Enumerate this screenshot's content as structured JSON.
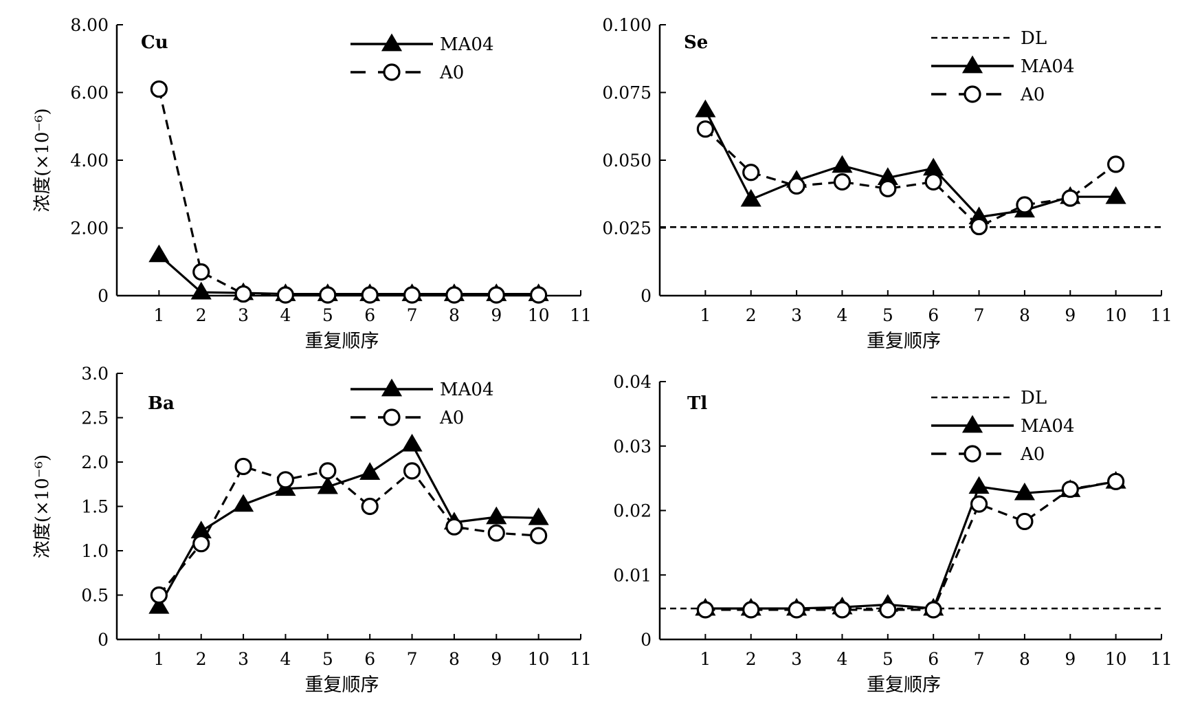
{
  "figure": {
    "background": "#ffffff",
    "line_color": "#000000"
  },
  "chart_data": [
    {
      "type": "line",
      "title": "Cu",
      "xlabel": "重复顺序",
      "ylabel": "浓度(×10⁻⁶)",
      "xlim": [
        0,
        11
      ],
      "ylim": [
        0,
        8
      ],
      "xticks": [
        "1",
        "2",
        "3",
        "4",
        "5",
        "6",
        "7",
        "8",
        "9",
        "10",
        "11"
      ],
      "yticks": [
        "0",
        "2.00",
        "4.00",
        "6.00",
        "8.00"
      ],
      "ytick_values": [
        0,
        2,
        4,
        6,
        8
      ],
      "x": [
        1,
        2,
        3,
        4,
        5,
        6,
        7,
        8,
        9,
        10
      ],
      "legend_position": "top-right",
      "series": [
        {
          "name": "MA04",
          "style": "solid",
          "marker": "triangle",
          "values": [
            1.2,
            0.1,
            0.08,
            0.05,
            0.05,
            0.05,
            0.05,
            0.05,
            0.05,
            0.05
          ]
        },
        {
          "name": "A0",
          "style": "dashed",
          "marker": "circle",
          "values": [
            6.1,
            0.7,
            0.05,
            0.02,
            0.02,
            0.02,
            0.02,
            0.02,
            0.02,
            0.02
          ]
        }
      ]
    },
    {
      "type": "line",
      "title": "Se",
      "xlabel": "重复顺序",
      "ylabel": "",
      "xlim": [
        0,
        11
      ],
      "ylim": [
        0,
        0.1
      ],
      "xticks": [
        "1",
        "2",
        "3",
        "4",
        "5",
        "6",
        "7",
        "8",
        "9",
        "10",
        "11"
      ],
      "yticks": [
        "0",
        "0.025",
        "0.050",
        "0.075",
        "0.100"
      ],
      "ytick_values": [
        0,
        0.025,
        0.05,
        0.075,
        0.1
      ],
      "x": [
        1,
        2,
        3,
        4,
        5,
        6,
        7,
        8,
        9,
        10
      ],
      "legend_position": "top-right",
      "reference_line": {
        "name": "DL",
        "value": 0.0253
      },
      "series": [
        {
          "name": "MA04",
          "style": "solid",
          "marker": "triangle",
          "values": [
            0.0685,
            0.0355,
            0.0425,
            0.048,
            0.0435,
            0.047,
            0.029,
            0.0315,
            0.0365,
            0.0365
          ]
        },
        {
          "name": "A0",
          "style": "dashed",
          "marker": "circle",
          "values": [
            0.0615,
            0.0455,
            0.0405,
            0.042,
            0.0395,
            0.042,
            0.0255,
            0.0335,
            0.036,
            0.0485
          ]
        }
      ]
    },
    {
      "type": "line",
      "title": "Ba",
      "xlabel": "重复顺序",
      "ylabel": "浓度(×10⁻⁶)",
      "xlim": [
        0,
        11
      ],
      "ylim": [
        0,
        3
      ],
      "xticks": [
        "1",
        "2",
        "3",
        "4",
        "5",
        "6",
        "7",
        "8",
        "9",
        "10",
        "11"
      ],
      "yticks": [
        "0",
        "0.5",
        "1.0",
        "1.5",
        "2.0",
        "2.5",
        "3.0"
      ],
      "ytick_values": [
        0,
        0.5,
        1,
        1.5,
        2,
        2.5,
        3
      ],
      "x": [
        1,
        2,
        3,
        4,
        5,
        6,
        7,
        8,
        9,
        10
      ],
      "legend_position": "top-right",
      "series": [
        {
          "name": "MA04",
          "style": "solid",
          "marker": "triangle",
          "values": [
            0.37,
            1.22,
            1.52,
            1.7,
            1.72,
            1.88,
            2.2,
            1.32,
            1.38,
            1.37
          ]
        },
        {
          "name": "A0",
          "style": "dashed",
          "marker": "circle",
          "values": [
            0.5,
            1.08,
            1.95,
            1.8,
            1.9,
            1.5,
            1.9,
            1.27,
            1.2,
            1.17
          ]
        }
      ]
    },
    {
      "type": "line",
      "title": "Tl",
      "xlabel": "重复顺序",
      "ylabel": "",
      "xlim": [
        0,
        11
      ],
      "ylim": [
        0,
        0.04
      ],
      "xticks": [
        "1",
        "2",
        "3",
        "4",
        "5",
        "6",
        "7",
        "8",
        "9",
        "10",
        "11"
      ],
      "yticks": [
        "0",
        "0.01",
        "0.02",
        "0.03",
        "0.04"
      ],
      "ytick_values": [
        0,
        0.01,
        0.02,
        0.03,
        0.04
      ],
      "x": [
        1,
        2,
        3,
        4,
        5,
        6,
        7,
        8,
        9,
        10
      ],
      "legend_position": "top-right",
      "reference_line": {
        "name": "DL",
        "value": 0.0048
      },
      "series": [
        {
          "name": "MA04",
          "style": "solid",
          "marker": "triangle",
          "values": [
            0.0048,
            0.0048,
            0.0048,
            0.005,
            0.0054,
            0.0048,
            0.0237,
            0.0227,
            0.0232,
            0.0245
          ]
        },
        {
          "name": "A0",
          "style": "dashed",
          "marker": "circle",
          "values": [
            0.0046,
            0.0046,
            0.0046,
            0.0046,
            0.0046,
            0.0046,
            0.021,
            0.0183,
            0.0233,
            0.0245
          ]
        }
      ]
    }
  ]
}
